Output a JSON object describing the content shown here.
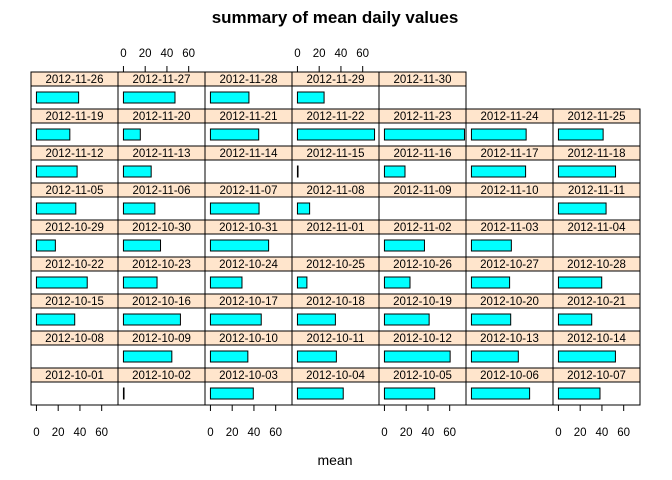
{
  "chart_data": {
    "type": "bar",
    "layout": "lattice",
    "title": "summary of mean daily values",
    "xlabel": "mean",
    "ylabel": "",
    "xlim": [
      -5,
      75
    ],
    "xticks": [
      0,
      20,
      40,
      60
    ],
    "grid": false,
    "colors": {
      "bar_fill": "#00FFFF",
      "bar_stroke": "#000000",
      "strip_fill": "#FFE5CC",
      "panel_border": "#000000"
    },
    "panels": [
      {
        "label": "2012-10-01",
        "value": null
      },
      {
        "label": "2012-10-02",
        "value": 0.4
      },
      {
        "label": "2012-10-03",
        "value": 39.4
      },
      {
        "label": "2012-10-04",
        "value": 42.1
      },
      {
        "label": "2012-10-05",
        "value": 46.2
      },
      {
        "label": "2012-10-06",
        "value": 53.5
      },
      {
        "label": "2012-10-07",
        "value": 38.2
      },
      {
        "label": "2012-10-08",
        "value": null
      },
      {
        "label": "2012-10-09",
        "value": 44.5
      },
      {
        "label": "2012-10-10",
        "value": 34.4
      },
      {
        "label": "2012-10-11",
        "value": 35.8
      },
      {
        "label": "2012-10-12",
        "value": 60.4
      },
      {
        "label": "2012-10-13",
        "value": 43.1
      },
      {
        "label": "2012-10-14",
        "value": 52.4
      },
      {
        "label": "2012-10-15",
        "value": 35.2
      },
      {
        "label": "2012-10-16",
        "value": 52.4
      },
      {
        "label": "2012-10-17",
        "value": 46.7
      },
      {
        "label": "2012-10-18",
        "value": 34.9
      },
      {
        "label": "2012-10-19",
        "value": 41.1
      },
      {
        "label": "2012-10-20",
        "value": 36.1
      },
      {
        "label": "2012-10-21",
        "value": 30.6
      },
      {
        "label": "2012-10-22",
        "value": 46.7
      },
      {
        "label": "2012-10-23",
        "value": 30.9
      },
      {
        "label": "2012-10-24",
        "value": 29.0
      },
      {
        "label": "2012-10-25",
        "value": 8.7
      },
      {
        "label": "2012-10-26",
        "value": 23.5
      },
      {
        "label": "2012-10-27",
        "value": 35.1
      },
      {
        "label": "2012-10-28",
        "value": 39.8
      },
      {
        "label": "2012-10-29",
        "value": 17.4
      },
      {
        "label": "2012-10-30",
        "value": 34.1
      },
      {
        "label": "2012-10-31",
        "value": 53.5
      },
      {
        "label": "2012-11-01",
        "value": null
      },
      {
        "label": "2012-11-02",
        "value": 36.8
      },
      {
        "label": "2012-11-03",
        "value": 36.7
      },
      {
        "label": "2012-11-04",
        "value": null
      },
      {
        "label": "2012-11-05",
        "value": 36.2
      },
      {
        "label": "2012-11-06",
        "value": 28.9
      },
      {
        "label": "2012-11-07",
        "value": 44.7
      },
      {
        "label": "2012-11-08",
        "value": 11.2
      },
      {
        "label": "2012-11-09",
        "value": null
      },
      {
        "label": "2012-11-10",
        "value": null
      },
      {
        "label": "2012-11-11",
        "value": 43.8
      },
      {
        "label": "2012-11-12",
        "value": 37.4
      },
      {
        "label": "2012-11-13",
        "value": 25.5
      },
      {
        "label": "2012-11-14",
        "value": null
      },
      {
        "label": "2012-11-15",
        "value": 0.1
      },
      {
        "label": "2012-11-16",
        "value": 18.9
      },
      {
        "label": "2012-11-17",
        "value": 49.8
      },
      {
        "label": "2012-11-18",
        "value": 52.5
      },
      {
        "label": "2012-11-19",
        "value": 30.7
      },
      {
        "label": "2012-11-20",
        "value": 15.5
      },
      {
        "label": "2012-11-21",
        "value": 44.4
      },
      {
        "label": "2012-11-22",
        "value": 70.9
      },
      {
        "label": "2012-11-23",
        "value": 73.6
      },
      {
        "label": "2012-11-24",
        "value": 50.3
      },
      {
        "label": "2012-11-25",
        "value": 41.1
      },
      {
        "label": "2012-11-26",
        "value": 38.8
      },
      {
        "label": "2012-11-27",
        "value": 47.4
      },
      {
        "label": "2012-11-28",
        "value": 35.4
      },
      {
        "label": "2012-11-29",
        "value": 24.5
      },
      {
        "label": "2012-11-30",
        "value": null
      }
    ]
  }
}
